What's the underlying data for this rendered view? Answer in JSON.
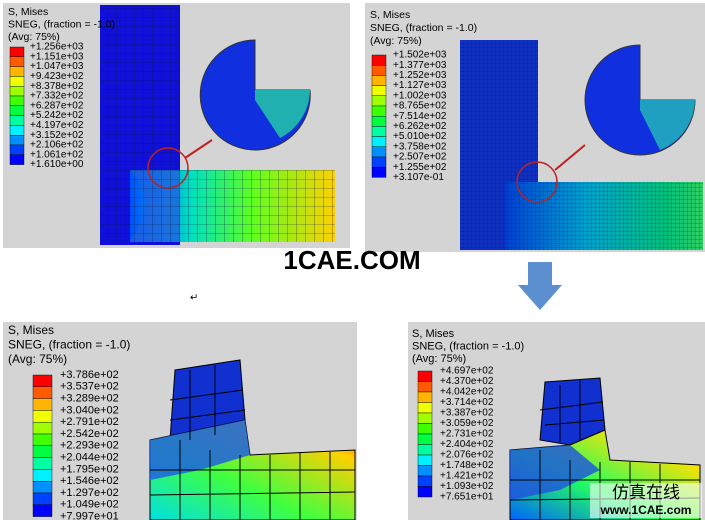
{
  "panels": [
    {
      "title": "S, Mises",
      "subtitle": "SNEG, (fraction = -1.0)",
      "avg": "(Avg: 75%)",
      "legend": [
        "+1.256e+03",
        "+1.151e+03",
        "+1.047e+03",
        "+9.423e+02",
        "+8.378e+02",
        "+7.332e+02",
        "+6.287e+02",
        "+5.242e+02",
        "+4.197e+02",
        "+3.152e+02",
        "+2.106e+02",
        "+1.061e+02",
        "+1.610e+00"
      ]
    },
    {
      "title": "S, Mises",
      "subtitle": "SNEG, (fraction = -1.0)",
      "avg": "(Avg: 75%)",
      "legend": [
        "+1.502e+03",
        "+1.377e+03",
        "+1.252e+03",
        "+1.127e+03",
        "+1.002e+03",
        "+8.765e+02",
        "+7.514e+02",
        "+6.262e+02",
        "+5.010e+02",
        "+3.758e+02",
        "+2.507e+02",
        "+1.255e+02",
        "+3.107e-01"
      ]
    },
    {
      "title": "S, Mises",
      "subtitle": "SNEG, (fraction = -1.0)",
      "avg": "(Avg: 75%)",
      "legend": [
        "+3.786e+02",
        "+3.537e+02",
        "+3.289e+02",
        "+3.040e+02",
        "+2.791e+02",
        "+2.542e+02",
        "+2.293e+02",
        "+2.044e+02",
        "+1.795e+02",
        "+1.546e+02",
        "+1.297e+02",
        "+1.049e+02",
        "+7.997e+01"
      ]
    },
    {
      "title": "S, Mises",
      "subtitle": "SNEG, (fraction = -1.0)",
      "avg": "(Avg: 75%)",
      "legend": [
        "+4.697e+02",
        "+4.370e+02",
        "+4.042e+02",
        "+3.714e+02",
        "+3.387e+02",
        "+3.059e+02",
        "+2.731e+02",
        "+2.404e+02",
        "+2.076e+02",
        "+1.748e+02",
        "+1.421e+02",
        "+1.093e+02",
        "+7.651e+01"
      ]
    }
  ],
  "watermark": {
    "center": "1CAE.COM",
    "brand": "仿真在线",
    "url": "www.1CAE.com"
  }
}
